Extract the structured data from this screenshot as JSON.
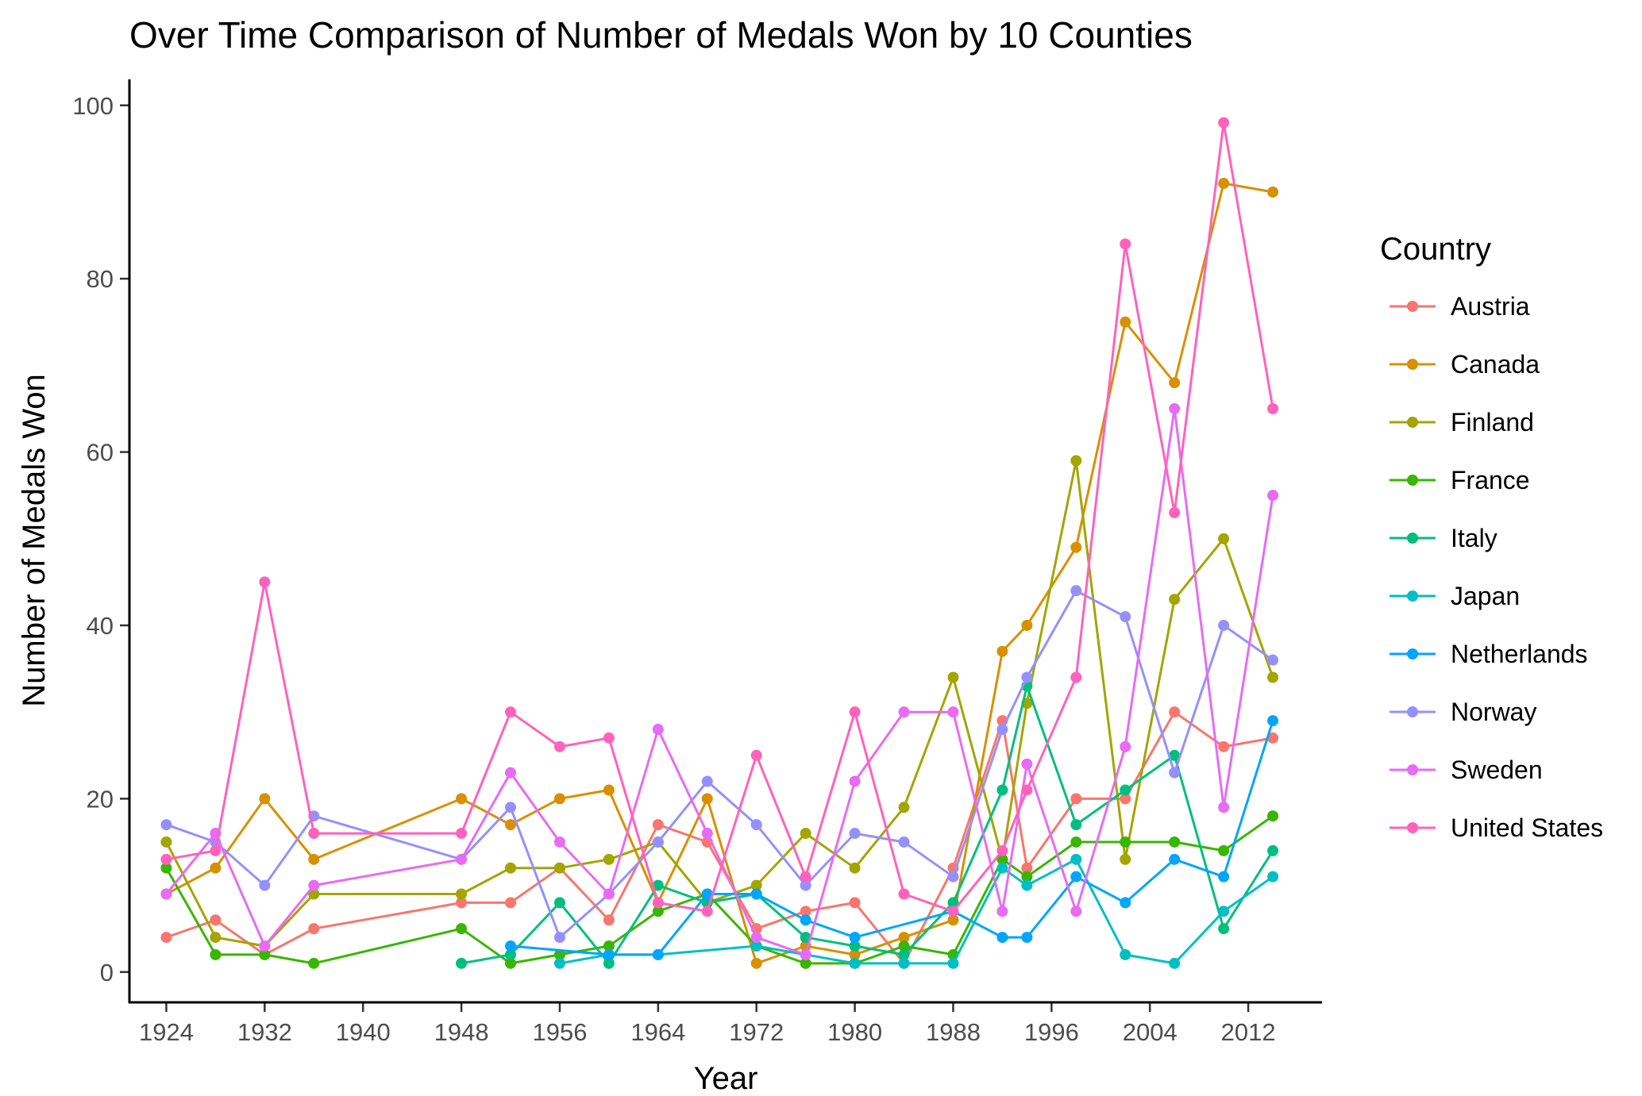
{
  "chart_data": {
    "type": "line",
    "title": "Over Time Comparison of Number of Medals Won by 10 Counties",
    "xlabel": "Year",
    "ylabel": "Number of Medals Won",
    "xlim": [
      1921,
      2018
    ],
    "ylim": [
      -3.5,
      103
    ],
    "xticks": [
      1924,
      1932,
      1940,
      1948,
      1956,
      1964,
      1972,
      1980,
      1988,
      1996,
      2004,
      2012
    ],
    "yticks": [
      0,
      20,
      40,
      60,
      80,
      100
    ],
    "grid": false,
    "legend": {
      "title": "Country",
      "placement": "right"
    },
    "series": [
      {
        "name": "Austria",
        "color": "#F8766D",
        "x": [
          1924,
          1928,
          1932,
          1936,
          1948,
          1952,
          1956,
          1960,
          1964,
          1968,
          1972,
          1976,
          1980,
          1984,
          1988,
          1992,
          1994,
          1998,
          2002,
          2006,
          2010,
          2014
        ],
        "y": [
          4,
          6,
          2,
          5,
          8,
          8,
          12,
          6,
          17,
          15,
          5,
          7,
          8,
          1,
          12,
          29,
          12,
          20,
          20,
          30,
          26,
          27
        ]
      },
      {
        "name": "Canada",
        "color": "#D89000",
        "x": [
          1924,
          1928,
          1932,
          1936,
          1948,
          1952,
          1956,
          1960,
          1964,
          1968,
          1972,
          1976,
          1980,
          1984,
          1988,
          1992,
          1994,
          1998,
          2002,
          2006,
          2010,
          2014
        ],
        "y": [
          9,
          12,
          20,
          13,
          20,
          17,
          20,
          21,
          8,
          20,
          1,
          3,
          2,
          4,
          6,
          37,
          40,
          49,
          75,
          68,
          91,
          90
        ]
      },
      {
        "name": "Finland",
        "color": "#A3A500",
        "x": [
          1924,
          1928,
          1932,
          1936,
          1948,
          1952,
          1956,
          1960,
          1964,
          1968,
          1972,
          1976,
          1980,
          1984,
          1988,
          1992,
          1994,
          1998,
          2002,
          2006,
          2010,
          2014
        ],
        "y": [
          15,
          4,
          3,
          9,
          9,
          12,
          12,
          13,
          15,
          8,
          10,
          16,
          12,
          19,
          34,
          13,
          31,
          59,
          13,
          43,
          50,
          34
        ]
      },
      {
        "name": "France",
        "color": "#39B600",
        "x": [
          1924,
          1928,
          1932,
          1936,
          1948,
          1952,
          1956,
          1960,
          1964,
          1968,
          1972,
          1976,
          1980,
          1984,
          1988,
          1992,
          1994,
          1998,
          2002,
          2006,
          2010,
          2014
        ],
        "y": [
          12,
          2,
          2,
          1,
          5,
          1,
          2,
          3,
          7,
          9,
          3,
          1,
          1,
          3,
          2,
          13,
          11,
          15,
          15,
          15,
          14,
          18
        ]
      },
      {
        "name": "Italy",
        "color": "#00BF7D",
        "x": [
          1948,
          1952,
          1956,
          1960,
          1964,
          1968,
          1972,
          1976,
          1980,
          1984,
          1988,
          1992,
          1994,
          1998,
          2002,
          2006,
          2010,
          2014
        ],
        "y": [
          1,
          2,
          8,
          1,
          10,
          8,
          9,
          4,
          3,
          2,
          8,
          21,
          33,
          17,
          21,
          25,
          5,
          14
        ]
      },
      {
        "name": "Japan",
        "color": "#00BFC4",
        "x": [
          1956,
          1960,
          1964,
          1972,
          1976,
          1980,
          1984,
          1988,
          1992,
          1994,
          1998,
          2002,
          2006,
          2010,
          2014
        ],
        "y": [
          1,
          2,
          2,
          3,
          2,
          1,
          1,
          1,
          12,
          10,
          13,
          2,
          1,
          7,
          11
        ]
      },
      {
        "name": "Netherlands",
        "color": "#00A5FF",
        "x": [
          1952,
          1960,
          1964,
          1968,
          1972,
          1976,
          1980,
          1988,
          1992,
          1994,
          1998,
          2002,
          2006,
          2010,
          2014
        ],
        "y": [
          3,
          2,
          2,
          9,
          9,
          6,
          4,
          7,
          4,
          4,
          11,
          8,
          13,
          11,
          29
        ]
      },
      {
        "name": "Norway",
        "color": "#9590FF",
        "x": [
          1924,
          1928,
          1932,
          1936,
          1948,
          1952,
          1956,
          1960,
          1964,
          1968,
          1972,
          1976,
          1980,
          1984,
          1988,
          1992,
          1994,
          1998,
          2002,
          2006,
          2010,
          2014
        ],
        "y": [
          17,
          15,
          10,
          18,
          13,
          19,
          4,
          9,
          15,
          22,
          17,
          10,
          16,
          15,
          11,
          28,
          34,
          44,
          41,
          23,
          40,
          36
        ]
      },
      {
        "name": "Sweden",
        "color": "#E76BF3",
        "x": [
          1924,
          1928,
          1932,
          1936,
          1948,
          1952,
          1956,
          1960,
          1964,
          1968,
          1972,
          1976,
          1980,
          1984,
          1988,
          1992,
          1994,
          1998,
          2002,
          2006,
          2010,
          2014
        ],
        "y": [
          9,
          16,
          3,
          10,
          13,
          23,
          15,
          9,
          28,
          16,
          4,
          2,
          22,
          30,
          30,
          7,
          24,
          7,
          26,
          65,
          19,
          55
        ]
      },
      {
        "name": "United States",
        "color": "#FF62BC",
        "x": [
          1924,
          1928,
          1932,
          1936,
          1948,
          1952,
          1956,
          1960,
          1964,
          1968,
          1972,
          1976,
          1980,
          1984,
          1988,
          1992,
          1994,
          1998,
          2002,
          2006,
          2010,
          2014
        ],
        "y": [
          13,
          14,
          45,
          16,
          16,
          30,
          26,
          27,
          8,
          7,
          25,
          11,
          30,
          9,
          7,
          14,
          21,
          34,
          84,
          53,
          98,
          65
        ]
      }
    ]
  }
}
